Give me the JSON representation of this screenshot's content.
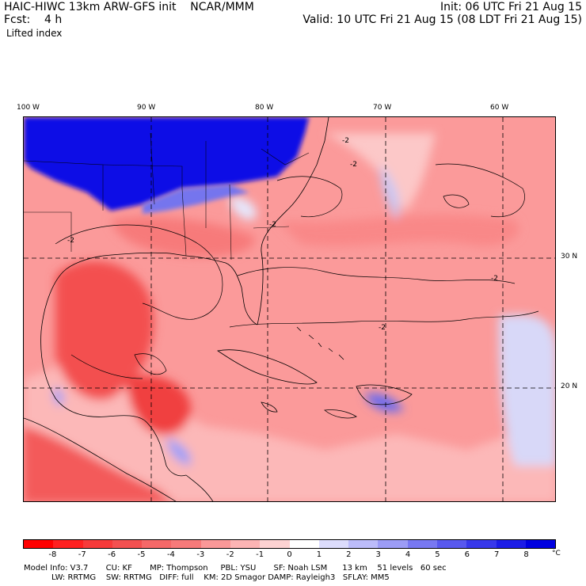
{
  "header": {
    "title_left": "HAIC-HIWC 13km ARW-GFS init    NCAR/MMM",
    "fcst": "Fcst:    4 h",
    "field": "Lifted index",
    "init": "Init: 06 UTC Fri 21 Aug 15",
    "valid": "Valid: 10 UTC Fri 21 Aug 15 (08 LDT Fri 21 Aug 15)"
  },
  "map": {
    "lon_labels": [
      "100 W",
      "90 W",
      "80 W",
      "70 W",
      "60 W"
    ],
    "lat_labels": [
      "30 N",
      "20 N"
    ],
    "contour_labels": [
      "-2",
      "-2",
      "-2",
      "-2",
      "-2",
      "-2"
    ],
    "colors": {
      "deep_red": "#ff1a1a",
      "red": "#f35050",
      "light_red": "#fb8c8c",
      "pale_red": "#fdc8c8",
      "pale_blue": "#c8c8fb",
      "blue": "#5050f0",
      "deep_blue": "#0000e6"
    }
  },
  "colorbar": {
    "ticks": [
      "-8",
      "-7",
      "-6",
      "-5",
      "-4",
      "-3",
      "-2",
      "-1",
      "0",
      "1",
      "2",
      "3",
      "4",
      "5",
      "6",
      "7",
      "8"
    ],
    "unit": "°C",
    "colors": [
      "#ff0000",
      "#ff2020",
      "#f73a3a",
      "#f35050",
      "#f56868",
      "#f77a7a",
      "#fa9898",
      "#fcb4b4",
      "#fdd2d2",
      "#ffffff",
      "#dcdcfc",
      "#bcbcfa",
      "#9c9cf6",
      "#7878f2",
      "#5858ee",
      "#3838ea",
      "#1c1ce6",
      "#0000e0"
    ]
  },
  "footer": {
    "line1": "Model Info: V3.7       CU: KF       MP: Thompson     PBL: YSU       SF: Noah LSM      13 km    51 levels   60 sec",
    "line2": "           LW: RRTMG    SW: RRTMG   DIFF: full    KM: 2D Smagor DAMP: Rayleigh3   SFLAY: MM5"
  }
}
